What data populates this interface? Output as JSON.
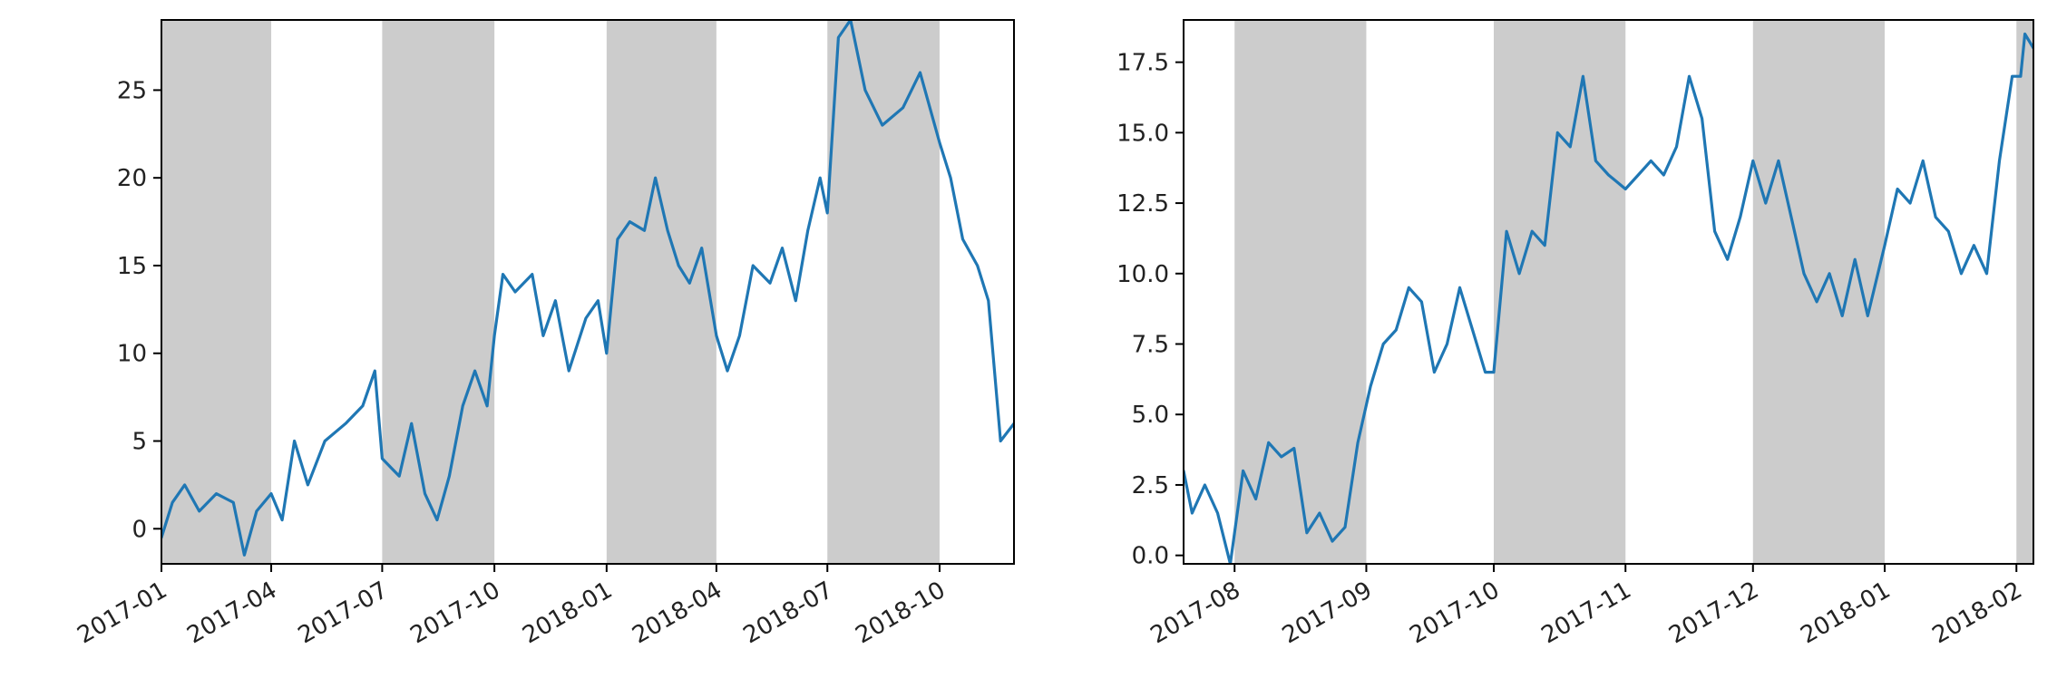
{
  "chart_data": [
    {
      "type": "line",
      "title": "",
      "xlabel": "",
      "ylabel": "",
      "xlim": [
        "2017-01-01",
        "2018-12-01"
      ],
      "ylim": [
        -2,
        29
      ],
      "x_ticks": [
        "2017-01",
        "2017-04",
        "2017-07",
        "2017-10",
        "2018-01",
        "2018-04",
        "2018-07",
        "2018-10"
      ],
      "y_ticks": [
        0,
        5,
        10,
        15,
        20,
        25
      ],
      "y_tick_labels": [
        "0",
        "5",
        "10",
        "15",
        "20",
        "25"
      ],
      "shaded_spans": [
        [
          "2017-01-01",
          "2017-04-01"
        ],
        [
          "2017-07-01",
          "2017-10-01"
        ],
        [
          "2018-01-01",
          "2018-04-01"
        ],
        [
          "2018-07-01",
          "2018-10-01"
        ]
      ],
      "shade_color": "#cccccc",
      "series": [
        {
          "color": "#1f77b4",
          "points": [
            [
              "2017-01-01",
              -0.5
            ],
            [
              "2017-01-10",
              1.5
            ],
            [
              "2017-01-20",
              2.5
            ],
            [
              "2017-02-01",
              1.0
            ],
            [
              "2017-02-15",
              2.0
            ],
            [
              "2017-03-01",
              1.5
            ],
            [
              "2017-03-10",
              -1.5
            ],
            [
              "2017-03-20",
              1.0
            ],
            [
              "2017-04-01",
              2.0
            ],
            [
              "2017-04-10",
              0.5
            ],
            [
              "2017-04-20",
              5.0
            ],
            [
              "2017-05-01",
              2.5
            ],
            [
              "2017-05-15",
              5.0
            ],
            [
              "2017-06-01",
              6.0
            ],
            [
              "2017-06-15",
              7.0
            ],
            [
              "2017-06-25",
              9.0
            ],
            [
              "2017-07-01",
              4.0
            ],
            [
              "2017-07-15",
              3.0
            ],
            [
              "2017-07-25",
              6.0
            ],
            [
              "2017-08-05",
              2.0
            ],
            [
              "2017-08-15",
              0.5
            ],
            [
              "2017-08-25",
              3.0
            ],
            [
              "2017-09-05",
              7.0
            ],
            [
              "2017-09-15",
              9.0
            ],
            [
              "2017-09-25",
              7.0
            ],
            [
              "2017-10-01",
              11.0
            ],
            [
              "2017-10-08",
              14.5
            ],
            [
              "2017-10-18",
              13.5
            ],
            [
              "2017-11-01",
              14.5
            ],
            [
              "2017-11-10",
              11.0
            ],
            [
              "2017-11-20",
              13.0
            ],
            [
              "2017-12-01",
              9.0
            ],
            [
              "2017-12-15",
              12.0
            ],
            [
              "2017-12-25",
              13.0
            ],
            [
              "2018-01-01",
              10.0
            ],
            [
              "2018-01-10",
              16.5
            ],
            [
              "2018-01-20",
              17.5
            ],
            [
              "2018-02-01",
              17.0
            ],
            [
              "2018-02-10",
              20.0
            ],
            [
              "2018-02-20",
              17.0
            ],
            [
              "2018-03-01",
              15.0
            ],
            [
              "2018-03-10",
              14.0
            ],
            [
              "2018-03-20",
              16.0
            ],
            [
              "2018-04-01",
              11.0
            ],
            [
              "2018-04-10",
              9.0
            ],
            [
              "2018-04-20",
              11.0
            ],
            [
              "2018-05-01",
              15.0
            ],
            [
              "2018-05-15",
              14.0
            ],
            [
              "2018-05-25",
              16.0
            ],
            [
              "2018-06-05",
              13.0
            ],
            [
              "2018-06-15",
              17.0
            ],
            [
              "2018-06-25",
              20.0
            ],
            [
              "2018-07-01",
              18.0
            ],
            [
              "2018-07-10",
              28.0
            ],
            [
              "2018-07-20",
              29.0
            ],
            [
              "2018-08-01",
              25.0
            ],
            [
              "2018-08-15",
              23.0
            ],
            [
              "2018-09-01",
              24.0
            ],
            [
              "2018-09-15",
              26.0
            ],
            [
              "2018-10-01",
              22.0
            ],
            [
              "2018-10-10",
              20.0
            ],
            [
              "2018-10-20",
              16.5
            ],
            [
              "2018-11-01",
              15.0
            ],
            [
              "2018-11-10",
              13.0
            ],
            [
              "2018-11-20",
              5.0
            ],
            [
              "2018-12-01",
              6.0
            ]
          ]
        }
      ]
    },
    {
      "type": "line",
      "title": "",
      "xlabel": "",
      "ylabel": "",
      "xlim": [
        "2017-07-20",
        "2018-02-05"
      ],
      "ylim": [
        -0.3,
        19.0
      ],
      "x_ticks": [
        "2017-08",
        "2017-09",
        "2017-10",
        "2017-11",
        "2017-12",
        "2018-01",
        "2018-02"
      ],
      "y_ticks": [
        0.0,
        2.5,
        5.0,
        7.5,
        10.0,
        12.5,
        15.0,
        17.5
      ],
      "y_tick_labels": [
        "0.0",
        "2.5",
        "5.0",
        "7.5",
        "10.0",
        "12.5",
        "15.0",
        "17.5"
      ],
      "shaded_spans": [
        [
          "2017-08-01",
          "2017-09-01"
        ],
        [
          "2017-10-01",
          "2017-11-01"
        ],
        [
          "2017-12-01",
          "2018-01-01"
        ],
        [
          "2018-02-01",
          "2018-02-05"
        ]
      ],
      "shade_color": "#cccccc",
      "series": [
        {
          "color": "#1f77b4",
          "points": [
            [
              "2017-07-20",
              3.0
            ],
            [
              "2017-07-22",
              1.5
            ],
            [
              "2017-07-25",
              2.5
            ],
            [
              "2017-07-28",
              1.5
            ],
            [
              "2017-07-31",
              -0.3
            ],
            [
              "2017-08-03",
              3.0
            ],
            [
              "2017-08-06",
              2.0
            ],
            [
              "2017-08-09",
              4.0
            ],
            [
              "2017-08-12",
              3.5
            ],
            [
              "2017-08-15",
              3.8
            ],
            [
              "2017-08-18",
              0.8
            ],
            [
              "2017-08-21",
              1.5
            ],
            [
              "2017-08-24",
              0.5
            ],
            [
              "2017-08-27",
              1.0
            ],
            [
              "2017-08-30",
              4.0
            ],
            [
              "2017-09-02",
              6.0
            ],
            [
              "2017-09-05",
              7.5
            ],
            [
              "2017-09-08",
              8.0
            ],
            [
              "2017-09-11",
              9.5
            ],
            [
              "2017-09-14",
              9.0
            ],
            [
              "2017-09-17",
              6.5
            ],
            [
              "2017-09-20",
              7.5
            ],
            [
              "2017-09-23",
              9.5
            ],
            [
              "2017-09-26",
              8.0
            ],
            [
              "2017-09-29",
              6.5
            ],
            [
              "2017-10-01",
              6.5
            ],
            [
              "2017-10-04",
              11.5
            ],
            [
              "2017-10-07",
              10.0
            ],
            [
              "2017-10-10",
              11.5
            ],
            [
              "2017-10-13",
              11.0
            ],
            [
              "2017-10-16",
              15.0
            ],
            [
              "2017-10-19",
              14.5
            ],
            [
              "2017-10-22",
              17.0
            ],
            [
              "2017-10-25",
              14.0
            ],
            [
              "2017-10-28",
              13.5
            ],
            [
              "2017-11-01",
              13.0
            ],
            [
              "2017-11-04",
              13.5
            ],
            [
              "2017-11-07",
              14.0
            ],
            [
              "2017-11-10",
              13.5
            ],
            [
              "2017-11-13",
              14.5
            ],
            [
              "2017-11-16",
              17.0
            ],
            [
              "2017-11-19",
              15.5
            ],
            [
              "2017-11-22",
              11.5
            ],
            [
              "2017-11-25",
              10.5
            ],
            [
              "2017-11-28",
              12.0
            ],
            [
              "2017-12-01",
              14.0
            ],
            [
              "2017-12-04",
              12.5
            ],
            [
              "2017-12-07",
              14.0
            ],
            [
              "2017-12-10",
              12.0
            ],
            [
              "2017-12-13",
              10.0
            ],
            [
              "2017-12-16",
              9.0
            ],
            [
              "2017-12-19",
              10.0
            ],
            [
              "2017-12-22",
              8.5
            ],
            [
              "2017-12-25",
              10.5
            ],
            [
              "2017-12-28",
              8.5
            ],
            [
              "2018-01-01",
              11.0
            ],
            [
              "2018-01-04",
              13.0
            ],
            [
              "2018-01-07",
              12.5
            ],
            [
              "2018-01-10",
              14.0
            ],
            [
              "2018-01-13",
              12.0
            ],
            [
              "2018-01-16",
              11.5
            ],
            [
              "2018-01-19",
              10.0
            ],
            [
              "2018-01-22",
              11.0
            ],
            [
              "2018-01-25",
              10.0
            ],
            [
              "2018-01-28",
              14.0
            ],
            [
              "2018-01-31",
              17.0
            ],
            [
              "2018-02-02",
              17.0
            ],
            [
              "2018-02-03",
              18.5
            ],
            [
              "2018-02-05",
              18.0
            ]
          ]
        }
      ]
    }
  ]
}
